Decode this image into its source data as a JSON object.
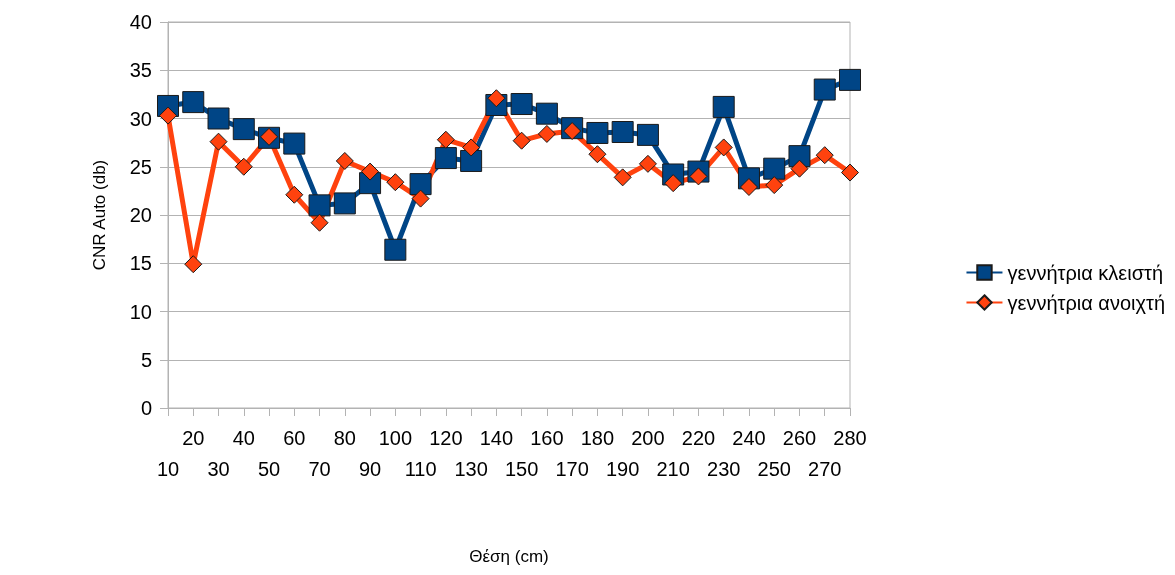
{
  "chart_data": {
    "type": "line",
    "xlabel": "Θέση (cm)",
    "ylabel": "CNR Auto (db)",
    "categories": [
      "10",
      "20",
      "30",
      "40",
      "50",
      "60",
      "70",
      "80",
      "90",
      "100",
      "110",
      "120",
      "130",
      "140",
      "150",
      "160",
      "170",
      "180",
      "190",
      "200",
      "210",
      "220",
      "230",
      "240",
      "250",
      "260",
      "270",
      "280"
    ],
    "series": [
      {
        "name": "γεννήτρια κλειστή",
        "color": "#004586",
        "marker": "square",
        "values": [
          31.3,
          31.7,
          30.0,
          28.9,
          28.0,
          27.4,
          21.0,
          21.2,
          23.3,
          16.4,
          23.2,
          25.9,
          25.6,
          31.4,
          31.5,
          30.5,
          29.0,
          28.5,
          28.6,
          28.3,
          24.2,
          24.5,
          31.2,
          23.8,
          24.8,
          26.1,
          33.0,
          34.0
        ]
      },
      {
        "name": "γεννήτρια ανοιχτή",
        "color": "#ff420e",
        "marker": "diamond",
        "values": [
          30.3,
          14.9,
          27.6,
          25.0,
          28.1,
          22.1,
          19.2,
          25.6,
          24.5,
          23.4,
          21.7,
          27.8,
          27.0,
          32.1,
          27.7,
          28.4,
          28.7,
          26.3,
          23.9,
          25.3,
          23.3,
          24.0,
          27.0,
          22.9,
          23.1,
          24.8,
          26.2,
          24.4
        ]
      }
    ],
    "ylim": [
      0,
      40
    ],
    "yticks": [
      0,
      5,
      10,
      15,
      20,
      25,
      30,
      35,
      40
    ],
    "grid": "y",
    "legend": "right",
    "line_style": "solid"
  }
}
